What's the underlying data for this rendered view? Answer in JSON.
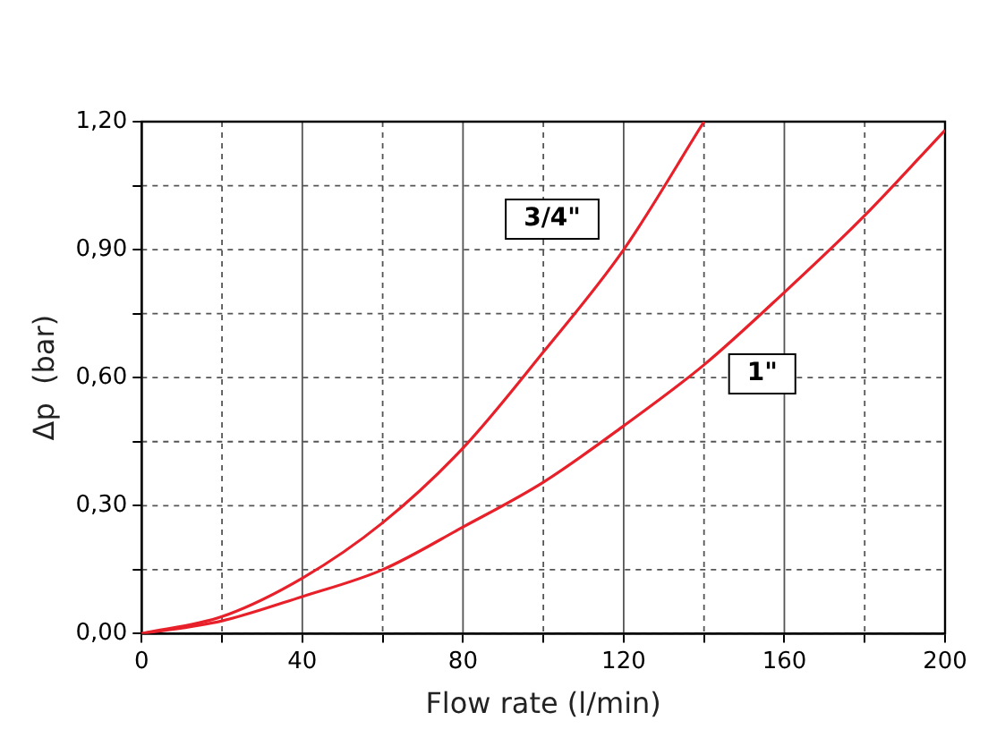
{
  "chart_data": {
    "type": "line",
    "xlabel": "Flow rate (l/min)",
    "ylabel": "Δp  (bar)",
    "series": [
      {
        "name": "3/4\"",
        "color": "#e8202a",
        "x": [
          0,
          20,
          40,
          60,
          80,
          100,
          120,
          140
        ],
        "values": [
          0,
          0.04,
          0.13,
          0.26,
          0.435,
          0.66,
          0.9,
          1.2
        ]
      },
      {
        "name": "1\"",
        "color": "#e8202a",
        "x": [
          0,
          20,
          40,
          60,
          80,
          100,
          120,
          140,
          160,
          180,
          200
        ],
        "values": [
          0,
          0.03,
          0.087,
          0.15,
          0.25,
          0.355,
          0.487,
          0.63,
          0.8,
          0.98,
          1.18
        ]
      }
    ],
    "xlim": [
      0,
      200
    ],
    "ylim": [
      0,
      1.2
    ],
    "xticks": [
      0,
      {
        "value": 20,
        "label": null
      },
      40,
      {
        "value": 60,
        "label": null
      },
      80,
      {
        "value": 100,
        "label": null
      },
      120,
      {
        "value": 140,
        "label": null
      },
      160,
      {
        "value": 180,
        "label": null
      },
      200
    ],
    "yticks": [
      {
        "value": 0,
        "label": "0,00"
      },
      {
        "value": 0.15,
        "label": null
      },
      {
        "value": 0.3,
        "label": "0,30"
      },
      {
        "value": 0.45,
        "label": null
      },
      {
        "value": 0.6,
        "label": "0,60"
      },
      {
        "value": 0.75,
        "label": null
      },
      {
        "value": 0.9,
        "label": "0,90"
      },
      {
        "value": 1.05,
        "label": null
      },
      {
        "value": 1.2,
        "label": "1,20"
      }
    ],
    "grid": true,
    "legend": false,
    "marker": "none",
    "line_style": "solid"
  }
}
